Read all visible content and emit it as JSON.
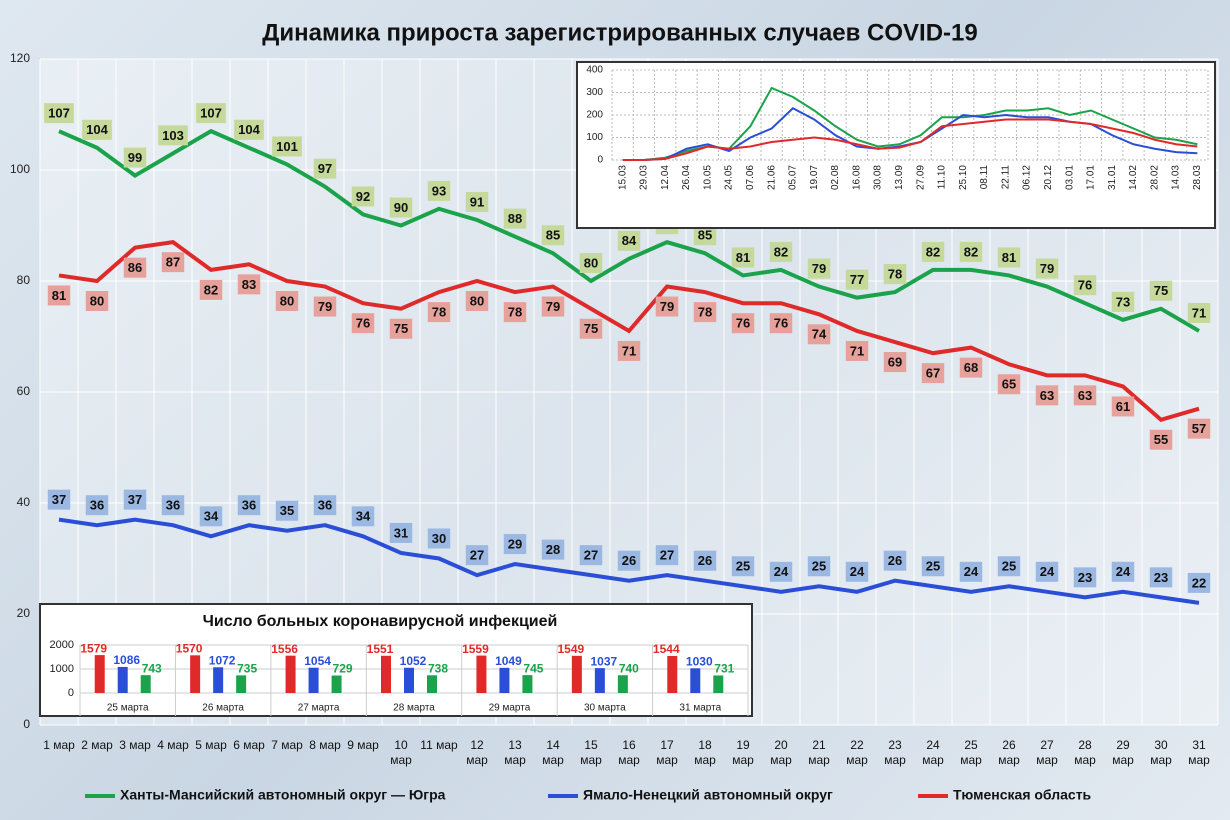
{
  "chart_data": [
    {
      "type": "line",
      "title": "Динамика прироста зарегистрированных случаев COVID-19",
      "categories": [
        "1 мар",
        "2 мар",
        "3 мар",
        "4 мар",
        "5 мар",
        "6 мар",
        "7 мар",
        "8 мар",
        "9 мар",
        "10 мар",
        "11 мар",
        "12 мар",
        "13 мар",
        "14 мар",
        "15 мар",
        "16 мар",
        "17 мар",
        "18 мар",
        "19 мар",
        "20 мар",
        "21 мар",
        "22 мар",
        "23 мар",
        "24 мар",
        "25 мар",
        "26 мар",
        "27 мар",
        "28 мар",
        "29 мар",
        "30 мар",
        "31 мар"
      ],
      "series": [
        {
          "name": "Ханты-Мансийский автономный округ — Югра",
          "color": "#1aa34a",
          "label_color": "#c5d99b",
          "values": [
            107,
            104,
            99,
            103,
            107,
            104,
            101,
            97,
            92,
            90,
            93,
            91,
            88,
            85,
            80,
            84,
            87,
            85,
            81,
            82,
            79,
            77,
            78,
            82,
            82,
            81,
            79,
            76,
            73,
            75,
            71
          ]
        },
        {
          "name": "Ямало-Ненецкий автономный округ",
          "color": "#2a4fd6",
          "label_color": "#9ab8e2",
          "values": [
            37,
            36,
            37,
            36,
            34,
            36,
            35,
            36,
            34,
            31,
            30,
            27,
            29,
            28,
            27,
            26,
            27,
            26,
            25,
            24,
            25,
            24,
            26,
            25,
            24,
            25,
            24,
            23,
            24,
            23,
            22
          ]
        },
        {
          "name": "Тюменская область",
          "color": "#e02a2a",
          "label_color": "#e6a19b",
          "values": [
            81,
            80,
            86,
            87,
            82,
            83,
            80,
            79,
            76,
            75,
            78,
            80,
            78,
            79,
            75,
            71,
            79,
            78,
            76,
            76,
            74,
            71,
            69,
            67,
            68,
            65,
            63,
            63,
            61,
            55,
            57
          ]
        }
      ],
      "ylim": [
        0,
        120
      ],
      "yticks": [
        0,
        20,
        40,
        60,
        80,
        100,
        120
      ],
      "grid": true,
      "legend": "bottom"
    },
    {
      "type": "line",
      "categories": [
        "15.03",
        "29.03",
        "12.04",
        "26.04",
        "10.05",
        "24.05",
        "07.06",
        "21.06",
        "05.07",
        "19.07",
        "02.08",
        "16.08",
        "30.08",
        "13.09",
        "27.09",
        "11.10",
        "25.10",
        "08.11",
        "22.11",
        "06.12",
        "20.12",
        "03.01",
        "17.01",
        "31.01",
        "14.02",
        "28.02",
        "14.03",
        "28.03"
      ],
      "series": [
        {
          "color": "#1aa34a",
          "values": [
            0,
            0,
            10,
            40,
            60,
            50,
            150,
            320,
            280,
            220,
            150,
            90,
            60,
            70,
            110,
            190,
            190,
            200,
            220,
            220,
            230,
            200,
            220,
            180,
            140,
            100,
            90,
            70
          ]
        },
        {
          "color": "#2a4fd6",
          "values": [
            0,
            0,
            5,
            50,
            70,
            40,
            100,
            140,
            230,
            180,
            110,
            60,
            50,
            60,
            80,
            140,
            200,
            190,
            200,
            190,
            190,
            170,
            160,
            110,
            70,
            50,
            35,
            30
          ]
        },
        {
          "color": "#e02a2a",
          "values": [
            0,
            0,
            5,
            30,
            60,
            50,
            60,
            80,
            90,
            100,
            90,
            70,
            50,
            55,
            80,
            150,
            160,
            170,
            180,
            180,
            180,
            170,
            160,
            140,
            120,
            90,
            70,
            60
          ]
        }
      ],
      "ylim": [
        0,
        400
      ],
      "yticks": [
        0,
        100,
        200,
        300,
        400
      ],
      "grid": true
    },
    {
      "type": "bar",
      "title": "Число больных коронавирусной инфекцией",
      "categories": [
        "25 марта",
        "26 марта",
        "27 марта",
        "28 марта",
        "29 марта",
        "30 марта",
        "31 марта"
      ],
      "series": [
        {
          "color": "#e02a2a",
          "values": [
            1579,
            1570,
            1556,
            1551,
            1559,
            1549,
            1544
          ]
        },
        {
          "color": "#2a4fd6",
          "values": [
            1086,
            1072,
            1054,
            1052,
            1049,
            1037,
            1030
          ]
        },
        {
          "color": "#1aa34a",
          "values": [
            743,
            735,
            729,
            738,
            745,
            740,
            731
          ]
        }
      ],
      "ylim": [
        0,
        2000
      ],
      "yticks": [
        0,
        1000,
        2000
      ],
      "grid": true
    }
  ]
}
